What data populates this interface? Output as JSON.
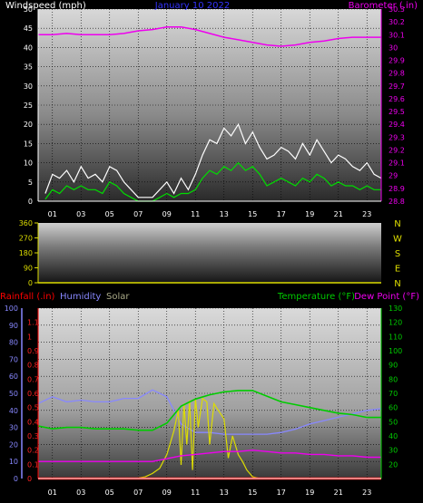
{
  "chart_data": [
    {
      "type": "line",
      "title": "January 10 2022",
      "left_axis_label": "Windspeed (mph)",
      "right_axis_label": "Barometer (.in)",
      "x_ticks": [
        "01",
        "03",
        "05",
        "07",
        "09",
        "11",
        "13",
        "15",
        "17",
        "19",
        "21",
        "23"
      ],
      "x_range": [
        0,
        24
      ],
      "y_left_range": [
        0,
        50
      ],
      "y_left_ticks": [
        "0",
        "5",
        "10",
        "15",
        "20",
        "25",
        "30",
        "35",
        "40",
        "45",
        "50"
      ],
      "y_right_range": [
        28.8,
        30.3
      ],
      "y_right_ticks": [
        "28.8",
        "28.9",
        "29",
        "29.1",
        "29.2",
        "29.3",
        "29.4",
        "29.5",
        "29.6",
        "29.7",
        "29.8",
        "29.9",
        "30",
        "30.1",
        "30.2",
        "30.3"
      ],
      "colors": {
        "gust": "#ffffff",
        "average": "#00dd00",
        "barometer": "#ee00ee",
        "grid": "#000000"
      },
      "series": [
        {
          "name": "Wind gust",
          "axis": "left",
          "x": [
            0.5,
            1,
            1.5,
            2,
            2.5,
            3,
            3.5,
            4,
            4.5,
            5,
            5.5,
            6,
            6.5,
            7,
            7.5,
            8,
            8.5,
            9,
            9.5,
            10,
            10.5,
            11,
            11.5,
            12,
            12.5,
            13,
            13.5,
            14,
            14.5,
            15,
            15.5,
            16,
            16.5,
            17,
            17.5,
            18,
            18.5,
            19,
            19.5,
            20,
            20.5,
            21,
            21.5,
            22,
            22.5,
            23,
            23.5,
            24
          ],
          "values": [
            2,
            7,
            6,
            8,
            5,
            9,
            6,
            7,
            5,
            9,
            8,
            5,
            3,
            1,
            1,
            1,
            3,
            5,
            2,
            6,
            3,
            7,
            12,
            16,
            15,
            19,
            17,
            20,
            15,
            18,
            14,
            11,
            12,
            14,
            13,
            11,
            15,
            12,
            16,
            13,
            10,
            12,
            11,
            9,
            8,
            10,
            7,
            6
          ]
        },
        {
          "name": "Wind average",
          "axis": "left",
          "x": [
            0.5,
            1,
            1.5,
            2,
            2.5,
            3,
            3.5,
            4,
            4.5,
            5,
            5.5,
            6,
            6.5,
            7,
            7.5,
            8,
            8.5,
            9,
            9.5,
            10,
            10.5,
            11,
            11.5,
            12,
            12.5,
            13,
            13.5,
            14,
            14.5,
            15,
            15.5,
            16,
            16.5,
            17,
            17.5,
            18,
            18.5,
            19,
            19.5,
            20,
            20.5,
            21,
            21.5,
            22,
            22.5,
            23,
            23.5,
            24
          ],
          "values": [
            0.5,
            3,
            2,
            4,
            3,
            4,
            3,
            3,
            2,
            5,
            4,
            2,
            1,
            0,
            0,
            0,
            1,
            2,
            1,
            2,
            2,
            3,
            6,
            8,
            7,
            9,
            8,
            10,
            8,
            9,
            7,
            4,
            5,
            6,
            5,
            4,
            6,
            5,
            7,
            6,
            4,
            5,
            4,
            4,
            3,
            4,
            3,
            3
          ]
        },
        {
          "name": "Barometer",
          "axis": "right",
          "x": [
            0,
            1,
            2,
            3,
            4,
            5,
            6,
            7,
            8,
            9,
            10,
            11,
            12,
            13,
            14,
            15,
            16,
            17,
            18,
            19,
            20,
            21,
            22,
            23,
            24
          ],
          "values": [
            30.1,
            30.1,
            30.11,
            30.1,
            30.1,
            30.1,
            30.11,
            30.13,
            30.14,
            30.16,
            30.16,
            30.14,
            30.11,
            30.08,
            30.06,
            30.04,
            30.02,
            30.01,
            30.02,
            30.04,
            30.05,
            30.07,
            30.08,
            30.08,
            30.08
          ]
        }
      ]
    },
    {
      "type": "scatter",
      "left_axis_label": "",
      "x_range": [
        0,
        24
      ],
      "y_range": [
        0,
        360
      ],
      "y_ticks": [
        "0",
        "90",
        "180",
        "270",
        "360"
      ],
      "right_labels": [
        "N",
        "W",
        "S",
        "E",
        "N"
      ],
      "colors": {
        "tick": "#dddd00"
      },
      "series": []
    },
    {
      "type": "line",
      "axis_labels": {
        "rainfall": "Rainfall (.in)",
        "humidity": "Humidity",
        "solar": "Solar",
        "temperature": "Temperature (°F)",
        "dewpoint": "Dew Point (°F)"
      },
      "x_ticks": [
        "01",
        "03",
        "05",
        "07",
        "09",
        "11",
        "13",
        "15",
        "17",
        "19",
        "21",
        "23"
      ],
      "x_range": [
        0,
        24
      ],
      "humidity_range": [
        0,
        100
      ],
      "humidity_ticks": [
        "0",
        "10",
        "20",
        "30",
        "40",
        "50",
        "60",
        "70",
        "80",
        "90",
        "100"
      ],
      "rain_range": [
        0,
        1.2
      ],
      "rain_ticks": [
        "0",
        "0.1",
        "0.2",
        "0.3",
        "0.4",
        "0.5",
        "0.6",
        "0.7",
        "0.8",
        "0.9",
        "1",
        "1.1"
      ],
      "temp_range": [
        10,
        130
      ],
      "temp_ticks": [
        "20",
        "30",
        "40",
        "50",
        "60",
        "70",
        "80",
        "90",
        "100",
        "110",
        "120",
        "130"
      ],
      "colors": {
        "humidity": "#8888ff",
        "solar": "#dddd00",
        "temperature": "#00cc00",
        "dewpoint": "#ee00ee",
        "rainfall": "#ff0000"
      },
      "series": [
        {
          "name": "Humidity",
          "axis": "humidity",
          "x": [
            0,
            1,
            2,
            3,
            4,
            5,
            6,
            7,
            8,
            9,
            10,
            11,
            12,
            13,
            14,
            15,
            16,
            17,
            18,
            19,
            20,
            21,
            22,
            23,
            24
          ],
          "values": [
            44,
            48,
            45,
            46,
            45,
            45,
            47,
            47,
            52,
            48,
            32,
            27,
            27,
            26,
            26,
            26,
            26,
            27,
            29,
            32,
            34,
            36,
            38,
            40,
            41
          ]
        },
        {
          "name": "Solar",
          "axis": "humidity",
          "x": [
            0,
            6.8,
            7.5,
            8,
            8.5,
            9,
            9.5,
            9.8,
            10,
            10.2,
            10.4,
            10.6,
            10.8,
            11,
            11.2,
            11.5,
            11.8,
            12,
            12.3,
            12.6,
            13,
            13.3,
            13.6,
            14,
            14.3,
            14.6,
            15,
            15.5,
            24
          ],
          "values": [
            0,
            0,
            1,
            3,
            6,
            14,
            28,
            40,
            8,
            44,
            20,
            46,
            5,
            47,
            30,
            47,
            45,
            20,
            44,
            40,
            35,
            12,
            25,
            14,
            10,
            5,
            1,
            0,
            0
          ]
        },
        {
          "name": "Temperature",
          "axis": "temp",
          "x": [
            0,
            1,
            2,
            3,
            4,
            5,
            6,
            7,
            8,
            9,
            10,
            11,
            12,
            13,
            14,
            15,
            16,
            17,
            18,
            19,
            20,
            21,
            22,
            23,
            24
          ],
          "values": [
            47,
            45,
            46,
            46,
            45,
            45,
            45,
            44,
            44,
            49,
            61,
            66,
            69,
            71,
            72,
            72,
            68,
            64,
            62,
            60,
            58,
            56,
            55,
            53,
            53
          ]
        },
        {
          "name": "Dew Point",
          "axis": "temp",
          "x": [
            0,
            1,
            2,
            3,
            4,
            5,
            6,
            7,
            8,
            9,
            10,
            11,
            12,
            13,
            14,
            15,
            16,
            17,
            18,
            19,
            20,
            21,
            22,
            23,
            24
          ],
          "values": [
            22,
            22,
            22,
            22,
            22,
            22,
            22,
            22,
            22,
            24,
            26,
            27,
            28,
            29,
            29,
            30,
            29,
            28,
            28,
            27,
            27,
            26,
            26,
            25,
            25
          ]
        },
        {
          "name": "Rainfall",
          "axis": "rain",
          "x": [
            0,
            24
          ],
          "values": [
            0,
            0
          ]
        }
      ]
    }
  ]
}
